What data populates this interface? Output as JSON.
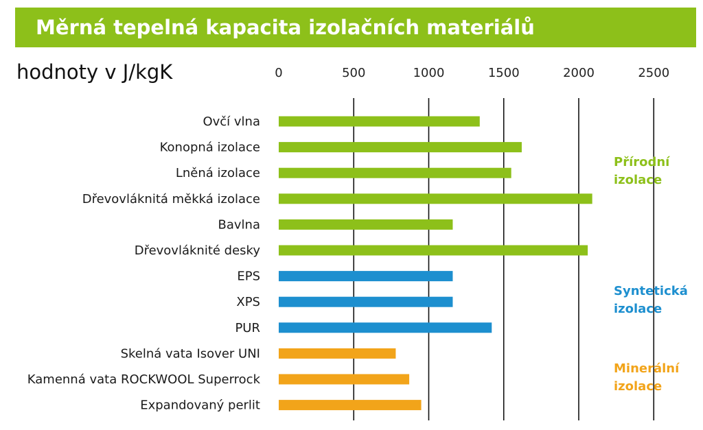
{
  "header": {
    "title": "Měrná tepelná kapacita izolačních materiálů",
    "unit_label": "hodnoty v J/kgK"
  },
  "colors": {
    "natural": "#8dc01a",
    "synthetic": "#1d8fcf",
    "mineral": "#f2a41a",
    "title_bg": "#8dc01a",
    "gridline": "#111111"
  },
  "chart_data": {
    "type": "bar",
    "orientation": "horizontal",
    "axis_position": "top",
    "xlim": [
      0,
      2500
    ],
    "ticks": [
      0,
      500,
      1000,
      1500,
      2000,
      2500
    ],
    "gridlines": [
      500,
      1000,
      1500,
      2000,
      2500
    ],
    "categories": [
      "Ovčí vlna",
      "Konopná izolace",
      "Lněná izolace",
      "Dřevovláknitá měkká izolace",
      "Bavlna",
      "Dřevovláknité desky",
      "EPS",
      "XPS",
      "PUR",
      "Skelná vata Isover UNI",
      "Kamenná vata ROCKWOOL Superrock",
      "Expandovaný perlit"
    ],
    "values": [
      1340,
      1620,
      1550,
      2090,
      1160,
      2060,
      1160,
      1160,
      1420,
      780,
      870,
      950
    ],
    "groups": [
      "natural",
      "natural",
      "natural",
      "natural",
      "natural",
      "natural",
      "synthetic",
      "synthetic",
      "synthetic",
      "mineral",
      "mineral",
      "mineral"
    ],
    "group_labels": [
      {
        "key": "natural",
        "lines": [
          "Přírodní",
          "izolace"
        ],
        "first_index": 2
      },
      {
        "key": "synthetic",
        "lines": [
          "Syntetická",
          "izolace"
        ],
        "first_index": 7
      },
      {
        "key": "mineral",
        "lines": [
          "Minerální",
          "izolace"
        ],
        "first_index": 10
      }
    ]
  }
}
